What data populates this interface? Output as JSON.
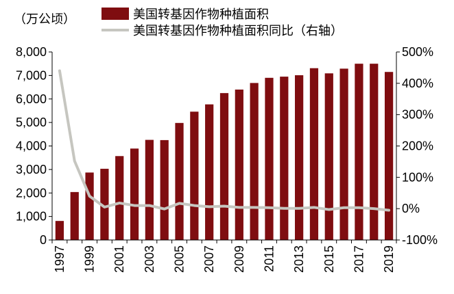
{
  "chart_data": {
    "type": "bar",
    "unit_label": "（万公顷）",
    "categories": [
      "1997",
      "1998",
      "1999",
      "2000",
      "2001",
      "2002",
      "2003",
      "2004",
      "2005",
      "2006",
      "2007",
      "2008",
      "2009",
      "2010",
      "2011",
      "2012",
      "2013",
      "2014",
      "2015",
      "2016",
      "2017",
      "2018",
      "2019"
    ],
    "x_tick_labels": [
      "1997",
      "1999",
      "2001",
      "2003",
      "2005",
      "2007",
      "2009",
      "2011",
      "2013",
      "2015",
      "2017",
      "2019"
    ],
    "series": [
      {
        "name": "美国转基因作物种植面积",
        "type": "bar",
        "axis": "left",
        "color": "#7f0d10",
        "values": [
          810,
          2040,
          2870,
          3030,
          3570,
          3890,
          4260,
          4250,
          4980,
          5460,
          5770,
          6250,
          6400,
          6680,
          6900,
          6950,
          7010,
          7310,
          7090,
          7290,
          7500,
          7500,
          7150
        ]
      },
      {
        "name": "美国转基因作物种植面积同比（右轴）",
        "type": "line",
        "axis": "right",
        "color": "#c6c6c0",
        "values": [
          440,
          152,
          40,
          5,
          18,
          10,
          10,
          -1,
          17,
          10,
          6,
          8,
          4,
          4,
          3,
          1,
          1,
          4,
          -3,
          3,
          3,
          0,
          -5
        ]
      }
    ],
    "left_axis": {
      "min": 0,
      "max": 8000,
      "step": 1000,
      "tick_labels": [
        "0",
        "1,000",
        "2,000",
        "3,000",
        "4,000",
        "5,000",
        "6,000",
        "7,000",
        "8,000"
      ]
    },
    "right_axis": {
      "min": -100,
      "max": 500,
      "step": 100,
      "tick_labels": [
        "-100%",
        "0%",
        "100%",
        "200%",
        "300%",
        "400%",
        "500%"
      ]
    },
    "grid": false,
    "legend_position": "top"
  }
}
